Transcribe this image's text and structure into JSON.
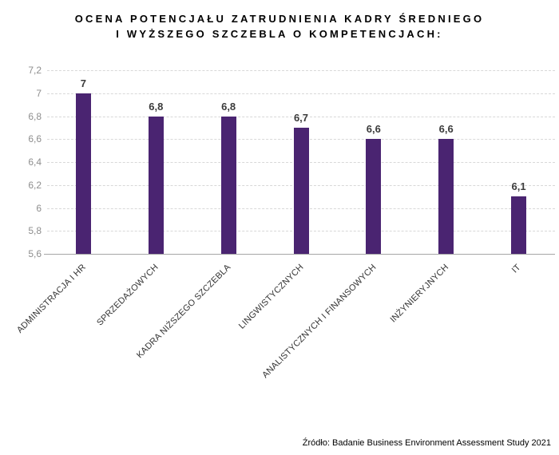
{
  "header": {
    "title_line1": "OCENA POTENCJAŁU ZATRUDNIENIA KADRY ŚREDNIEGO",
    "title_line2": "I WYŻSZEGO SZCZEBLA O KOMPETENCJACH:"
  },
  "footer": {
    "source": "Źródło: Badanie Business Environment Assessment Study 2021"
  },
  "colors": {
    "bar": "#4a2471",
    "gridline": "#d8d8d8",
    "axis_line": "#a6a6a6",
    "ytick_label": "#8e8e8e",
    "value_label": "#3b3b3b",
    "category_label": "#333333",
    "title": "#000000"
  },
  "chart_data": {
    "type": "bar",
    "title": "OCENA POTENCJAŁU ZATRUDNIENIA KADRY ŚREDNIEGO I WYŻSZEGO SZCZEBLA O KOMPETENCJACH:",
    "categories": [
      "ADMINISTRACJA I HR",
      "SPRZEDAŻOWYCH",
      "KADRA NIŻSZEGO SZCZEBLA",
      "LINGWISTYCZNYCH",
      "ANALISTYCZNYCH I FINANSOWYCH",
      "INŻYNIERYJNYCH",
      "IT"
    ],
    "values": [
      7.0,
      6.8,
      6.8,
      6.7,
      6.6,
      6.6,
      6.1
    ],
    "value_labels": [
      "7",
      "6,8",
      "6,8",
      "6,7",
      "6,6",
      "6,6",
      "6,1"
    ],
    "xlabel": "",
    "ylabel": "",
    "ylim": [
      5.6,
      7.2
    ],
    "ytick_step": 0.2,
    "ytick_labels": [
      "5,6",
      "5,8",
      "6",
      "6,2",
      "6,4",
      "6,6",
      "6,8",
      "7",
      "7,2"
    ],
    "grid": "horizontal-dashed",
    "legend": "none",
    "bar_orientation": "vertical",
    "decimal_separator": ","
  }
}
